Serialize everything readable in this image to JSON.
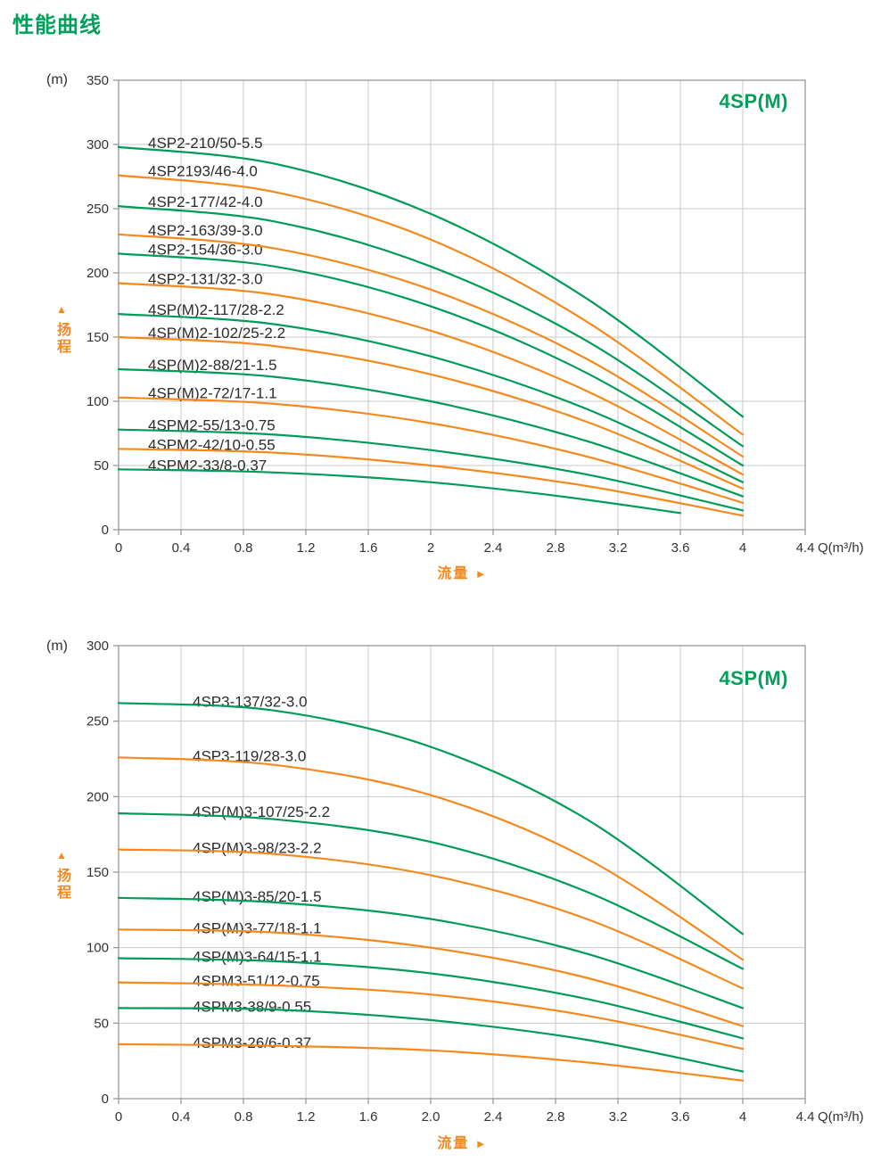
{
  "page": {
    "title": "性能曲线"
  },
  "colors": {
    "title_green": "#00A05A",
    "curve_green": "#009C57",
    "curve_orange": "#F6891E",
    "grid": "#C8C8C8",
    "axis": "#999999",
    "tick_text": "#333333",
    "curve_label_text": "#2B2B2B",
    "axis_label_orange": "#F6891E"
  },
  "chart_data": [
    {
      "type": "line",
      "title": "4SP(M)",
      "y_unit": "(m)",
      "ylabel": "扬程",
      "ylabel_arrow": "▲",
      "xlabel": "流量",
      "xlabel_arrow": "►",
      "x_unit": "Q(m³/h)",
      "xlim": [
        0,
        4.4
      ],
      "ylim": [
        0,
        350
      ],
      "grid": true,
      "legend_position": "labels-above-curves",
      "x_tick_values": [
        0,
        0.4,
        0.8,
        1.2,
        1.6,
        2,
        2.4,
        2.8,
        3.2,
        3.6,
        4,
        4.4
      ],
      "x_tick_labels": [
        "0",
        "0.4",
        "0.8",
        "1.2",
        "1.6",
        "2",
        "2.4",
        "2.8",
        "3.2",
        "3.6",
        "4",
        "4.4"
      ],
      "y_ticks": [
        350,
        300,
        250,
        200,
        150,
        100,
        50,
        0
      ],
      "series": [
        {
          "label": "4SP2-210/50-5.5",
          "color": "green",
          "q": [
            0,
            1,
            2,
            3,
            4
          ],
          "h": [
            298,
            285,
            246,
            180,
            88
          ]
        },
        {
          "label": "4SP2193/46-4.0",
          "color": "orange",
          "q": [
            0,
            1,
            2,
            3,
            4
          ],
          "h": [
            276,
            263,
            226,
            162,
            74
          ]
        },
        {
          "label": "4SP2-177/42-4.0",
          "color": "green",
          "q": [
            0,
            1,
            2,
            3,
            4
          ],
          "h": [
            252,
            240,
            205,
            147,
            65
          ]
        },
        {
          "label": "4SP2-163/39-3.0",
          "color": "orange",
          "q": [
            0,
            1,
            2,
            3,
            4
          ],
          "h": [
            230,
            219,
            187,
            133,
            57
          ]
        },
        {
          "label": "4SP2-154/36-3.0",
          "color": "green",
          "q": [
            0,
            1,
            2,
            3,
            4
          ],
          "h": [
            215,
            205,
            174,
            122,
            50
          ]
        },
        {
          "label": "4SP2-131/32-3.0",
          "color": "orange",
          "q": [
            0,
            1,
            2,
            3,
            4
          ],
          "h": [
            192,
            183,
            155,
            108,
            43
          ]
        },
        {
          "label": "4SP(M)2-117/28-2.2",
          "color": "green",
          "q": [
            0,
            1,
            2,
            3,
            4
          ],
          "h": [
            168,
            160,
            135,
            94,
            37
          ]
        },
        {
          "label": "4SP(M)2-102/25-2.2",
          "color": "orange",
          "q": [
            0,
            1,
            2,
            3,
            4
          ],
          "h": [
            150,
            143,
            121,
            84,
            32
          ]
        },
        {
          "label": "4SP(M)2-88/21-1.5",
          "color": "green",
          "q": [
            0,
            1,
            2,
            3,
            4
          ],
          "h": [
            125,
            119,
            100,
            69,
            26
          ]
        },
        {
          "label": "4SP(M)2-72/17-1.1",
          "color": "orange",
          "q": [
            0,
            1,
            2,
            3,
            4
          ],
          "h": [
            103,
            98,
            83,
            57,
            21
          ]
        },
        {
          "label": "4SPM2-55/13-0.75",
          "color": "green",
          "q": [
            0,
            1,
            2,
            3,
            4
          ],
          "h": [
            78,
            74,
            62,
            43,
            15
          ]
        },
        {
          "label": "4SPM2-42/10-0.55",
          "color": "orange",
          "q": [
            0,
            1,
            2,
            3,
            4
          ],
          "h": [
            63,
            60,
            50,
            34,
            11
          ]
        },
        {
          "label": "4SPM2-33/8-0.37",
          "color": "green",
          "q": [
            0,
            0.9,
            1.8,
            2.7,
            3.6
          ],
          "h": [
            47,
            45,
            39,
            28,
            13
          ]
        }
      ]
    },
    {
      "type": "line",
      "title": "4SP(M)",
      "y_unit": "(m)",
      "ylabel": "扬程",
      "ylabel_arrow": "▲",
      "xlabel": "流量",
      "xlabel_arrow": "►",
      "x_unit": "Q(m³/h)",
      "xlim": [
        0,
        4.4
      ],
      "ylim": [
        0,
        300
      ],
      "grid": true,
      "legend_position": "labels-above-curves",
      "x_tick_values": [
        0,
        0.4,
        0.8,
        1.2,
        1.6,
        2,
        2.4,
        2.8,
        3.2,
        3.6,
        4,
        4.4
      ],
      "x_tick_labels": [
        "0",
        "0.4",
        "0.8",
        "1.2",
        "1.6",
        "2.0",
        "2.4",
        "2.8",
        "3.2",
        "3.6",
        "4",
        "4.4"
      ],
      "y_ticks": [
        300,
        250,
        200,
        150,
        100,
        50,
        0
      ],
      "series": [
        {
          "label": "4SP3-137/32-3.0",
          "color": "green",
          "q": [
            0,
            1,
            2,
            3,
            4
          ],
          "h": [
            262,
            257,
            233,
            185,
            109
          ]
        },
        {
          "label": "4SP3-119/28-3.0",
          "color": "orange",
          "q": [
            0,
            1,
            2,
            3,
            4
          ],
          "h": [
            226,
            221,
            201,
            159,
            92
          ]
        },
        {
          "label": "4SP(M)3-107/25-2.2",
          "color": "green",
          "q": [
            0,
            1,
            2,
            3,
            4
          ],
          "h": [
            189,
            185,
            170,
            137,
            86
          ]
        },
        {
          "label": "4SP(M)3-98/23-2.2",
          "color": "orange",
          "q": [
            0,
            1,
            2,
            3,
            4
          ],
          "h": [
            165,
            162,
            148,
            119,
            73
          ]
        },
        {
          "label": "4SP(M)3-85/20-1.5",
          "color": "green",
          "q": [
            0,
            1,
            2,
            3,
            4
          ],
          "h": [
            133,
            130,
            119,
            96,
            60
          ]
        },
        {
          "label": "4SP(M)3-77/18-1.1",
          "color": "orange",
          "q": [
            0,
            1,
            2,
            3,
            4
          ],
          "h": [
            112,
            110,
            100,
            80,
            48
          ]
        },
        {
          "label": "4SP(M)3-64/15-1.1",
          "color": "green",
          "q": [
            0,
            1,
            2,
            3,
            4
          ],
          "h": [
            93,
            91,
            83,
            66,
            40
          ]
        },
        {
          "label": "4SPM3-51/12-0.75",
          "color": "orange",
          "q": [
            0,
            1,
            2,
            3,
            4
          ],
          "h": [
            77,
            75,
            69,
            55,
            33
          ]
        },
        {
          "label": "4SPM3-38/9-0.55",
          "color": "green",
          "q": [
            0,
            1,
            2,
            3,
            4
          ],
          "h": [
            60,
            59,
            52,
            39,
            18
          ]
        },
        {
          "label": "4SPM3-26/6-0.37",
          "color": "orange",
          "q": [
            0,
            1,
            2,
            3,
            4
          ],
          "h": [
            36,
            35,
            32,
            24,
            12
          ]
        }
      ]
    }
  ]
}
